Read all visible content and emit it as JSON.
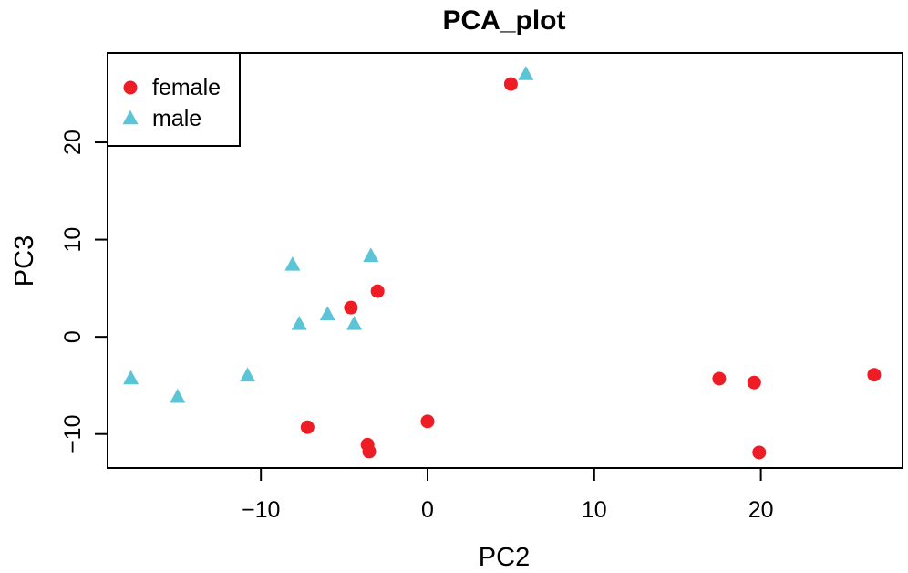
{
  "chart_data": {
    "type": "scatter",
    "title": "PCA_plot",
    "xlabel": "PC2",
    "ylabel": "PC3",
    "xlim": [
      -19.2,
      28.5
    ],
    "ylim": [
      -13.5,
      29.2
    ],
    "xticks": [
      -10,
      0,
      10,
      20
    ],
    "yticks": [
      -10,
      0,
      10,
      20
    ],
    "legend_position": "top-left",
    "series": [
      {
        "name": "female",
        "marker": "circle",
        "color": "#ee1c25",
        "points": [
          {
            "x": 5.0,
            "y": 26.0
          },
          {
            "x": -4.6,
            "y": 3.0
          },
          {
            "x": -3.0,
            "y": 4.7
          },
          {
            "x": -7.2,
            "y": -9.3
          },
          {
            "x": -3.6,
            "y": -11.1
          },
          {
            "x": -3.5,
            "y": -11.8
          },
          {
            "x": 0.0,
            "y": -8.7
          },
          {
            "x": 17.5,
            "y": -4.3
          },
          {
            "x": 19.6,
            "y": -4.7
          },
          {
            "x": 19.9,
            "y": -11.9
          },
          {
            "x": 26.8,
            "y": -3.9
          }
        ]
      },
      {
        "name": "male",
        "marker": "triangle",
        "color": "#5bc4d6",
        "points": [
          {
            "x": 5.9,
            "y": 27.0
          },
          {
            "x": -8.1,
            "y": 7.4
          },
          {
            "x": -3.4,
            "y": 8.3
          },
          {
            "x": -7.7,
            "y": 1.3
          },
          {
            "x": -6.0,
            "y": 2.3
          },
          {
            "x": -4.4,
            "y": 1.3
          },
          {
            "x": -17.8,
            "y": -4.3
          },
          {
            "x": -15.0,
            "y": -6.2
          },
          {
            "x": -10.8,
            "y": -4.0
          }
        ]
      }
    ]
  }
}
